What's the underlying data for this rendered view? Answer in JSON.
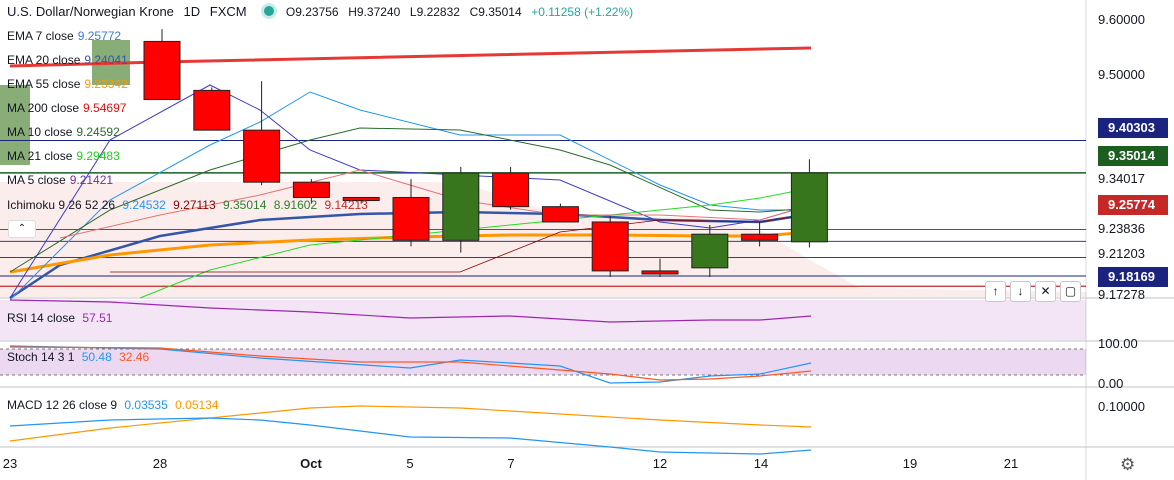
{
  "header": {
    "symbol": "U.S. Dollar/Norwegian Krone",
    "interval": "1D",
    "source": "FXCM",
    "open": "O9.23756",
    "high": "H9.37240",
    "low": "L9.22832",
    "close": "C9.35014",
    "change": "+0.11258 (+1.22%)"
  },
  "colors": {
    "up": "#38761d",
    "down": "#ff0000",
    "ema7": "#3c78d8",
    "ema20": "#3355aa",
    "ema55": "#ff9800",
    "ma200": "#e01010",
    "ma10": "#2a6a2a",
    "ma21": "#22dd22",
    "ma5": "#7030a0",
    "rsi": "#9c27b0",
    "stoch_k": "#2196f3",
    "stoch_d": "#ff5722",
    "macd": "#2196f3",
    "signal": "#ff9800"
  },
  "legend": [
    {
      "name": "EMA 7 close",
      "value": "9.25772",
      "color": "#3c78d8"
    },
    {
      "name": "EMA 20 close",
      "value": "9.24041",
      "color": "#3355aa"
    },
    {
      "name": "EMA 55 close",
      "value": "9.23342",
      "color": "#ff9800"
    },
    {
      "name": "MA 200 close",
      "value": "9.54697",
      "color": "#e01010"
    },
    {
      "name": "MA 10 close",
      "value": "9.24592",
      "color": "#2a6a2a"
    },
    {
      "name": "MA 21 close",
      "value": "9.29483",
      "color": "#22cc22"
    },
    {
      "name": "MA 5 close",
      "value": "9.21421",
      "color": "#7030a0"
    }
  ],
  "ichimoku": {
    "name": "Ichimoku 9 26 52 26",
    "values": [
      "9.24532",
      "9.27113",
      "9.35014",
      "8.91602",
      "9.14213"
    ],
    "colors": [
      "#2196f3",
      "#8b0000",
      "#2e7d32",
      "#2e7d32",
      "#c62828"
    ]
  },
  "price_axis": {
    "ticks": [
      "9.60000",
      "9.50000",
      "9.40303",
      "9.35014",
      "9.34017",
      "9.25774",
      "9.23836",
      "9.21203",
      "9.18169"
    ],
    "cut_tick": "9.17278"
  },
  "price_tags": [
    {
      "label": "9.40303",
      "color": "#1a237e",
      "value": 9.40303
    },
    {
      "label": "9.35014",
      "color": "#1b5e20",
      "value": 9.35014
    },
    {
      "label": "9.25774",
      "color": "#c62828",
      "value": 9.25774
    },
    {
      "label": "9.18169",
      "color": "#1a237e",
      "value": 9.18169
    }
  ],
  "rsi": {
    "label": "RSI 14 close",
    "value": "57.51"
  },
  "stoch": {
    "label": "Stoch 14 3 1",
    "k": "50.48",
    "d": "32.46",
    "ticks": [
      "100.00",
      "0.00"
    ]
  },
  "macd": {
    "label": "MACD 12 26 close 9",
    "macd": "0.03535",
    "signal": "0.05134",
    "tick": "0.10000"
  },
  "x_axis": [
    {
      "label": "23",
      "x": 10
    },
    {
      "label": "28",
      "x": 160
    },
    {
      "label": "Oct",
      "x": 311
    },
    {
      "label": "5",
      "x": 410
    },
    {
      "label": "7",
      "x": 511
    },
    {
      "label": "12",
      "x": 660
    },
    {
      "label": "14",
      "x": 761
    },
    {
      "label": "19",
      "x": 910
    },
    {
      "label": "21",
      "x": 1011
    }
  ],
  "chart_data": {
    "type": "candlestick",
    "dates": [
      "Sep 28",
      "Sep 29",
      "Sep 30",
      "Oct 1",
      "Oct 2",
      "Oct 5",
      "Oct 6",
      "Oct 7",
      "Oct 8",
      "Oct 9",
      "Oct 12",
      "Oct 13",
      "Oct 14",
      "Oct 15"
    ],
    "open": [
      9.565,
      9.485,
      9.42,
      9.335,
      9.31,
      9.31,
      9.24,
      9.35,
      9.295,
      9.27,
      9.19,
      9.195,
      9.25,
      9.23756
    ],
    "high": [
      9.585,
      9.49,
      9.5,
      9.34,
      9.31,
      9.34,
      9.36,
      9.36,
      9.3,
      9.28,
      9.21,
      9.265,
      9.27,
      9.3724
    ],
    "low": [
      9.47,
      9.42,
      9.33,
      9.3,
      9.3,
      9.23,
      9.22,
      9.29,
      9.27,
      9.18,
      9.18,
      9.18,
      9.23,
      9.22832
    ],
    "close": [
      9.47,
      9.42,
      9.335,
      9.31,
      9.305,
      9.24,
      9.35,
      9.295,
      9.27,
      9.19,
      9.185,
      9.25,
      9.24,
      9.35014
    ]
  }
}
